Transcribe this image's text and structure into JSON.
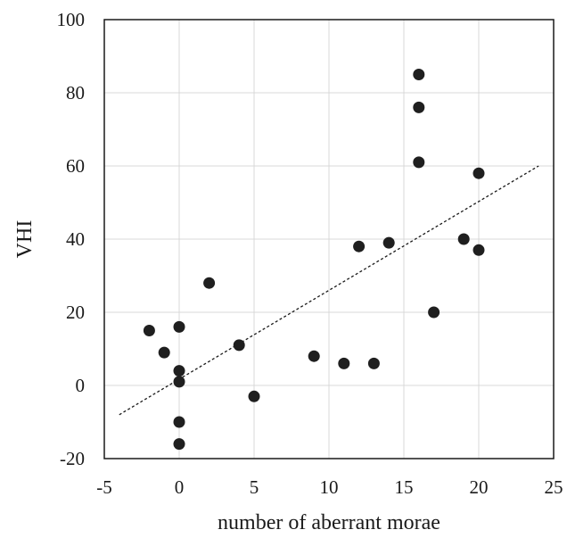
{
  "chart_data": {
    "type": "scatter",
    "title": "",
    "xlabel": "number of aberrant morae",
    "ylabel": "VHI",
    "xlim": [
      -5,
      25
    ],
    "ylim": [
      -20,
      100
    ],
    "x_ticks": [
      -5,
      0,
      5,
      10,
      15,
      20,
      25
    ],
    "y_ticks": [
      -20,
      0,
      20,
      40,
      60,
      80,
      100
    ],
    "grid": true,
    "legend": "none",
    "series": [
      {
        "color": "#1f1f1f",
        "points": [
          {
            "x": -2,
            "y": 15
          },
          {
            "x": -1,
            "y": 9
          },
          {
            "x": 0,
            "y": 16
          },
          {
            "x": 0,
            "y": 4
          },
          {
            "x": 0,
            "y": 1
          },
          {
            "x": 0,
            "y": -10
          },
          {
            "x": 0,
            "y": -16
          },
          {
            "x": 2,
            "y": 28
          },
          {
            "x": 4,
            "y": 11
          },
          {
            "x": 5,
            "y": -3
          },
          {
            "x": 9,
            "y": 8
          },
          {
            "x": 11,
            "y": 6
          },
          {
            "x": 12,
            "y": 38
          },
          {
            "x": 13,
            "y": 6
          },
          {
            "x": 14,
            "y": 39
          },
          {
            "x": 16,
            "y": 85
          },
          {
            "x": 16,
            "y": 76
          },
          {
            "x": 16,
            "y": 61
          },
          {
            "x": 17,
            "y": 20
          },
          {
            "x": 19,
            "y": 40
          },
          {
            "x": 20,
            "y": 58
          },
          {
            "x": 20,
            "y": 37
          }
        ]
      }
    ],
    "trendline": {
      "style": "dashed",
      "x": [
        -4,
        24
      ],
      "y": [
        -8,
        60
      ]
    }
  }
}
